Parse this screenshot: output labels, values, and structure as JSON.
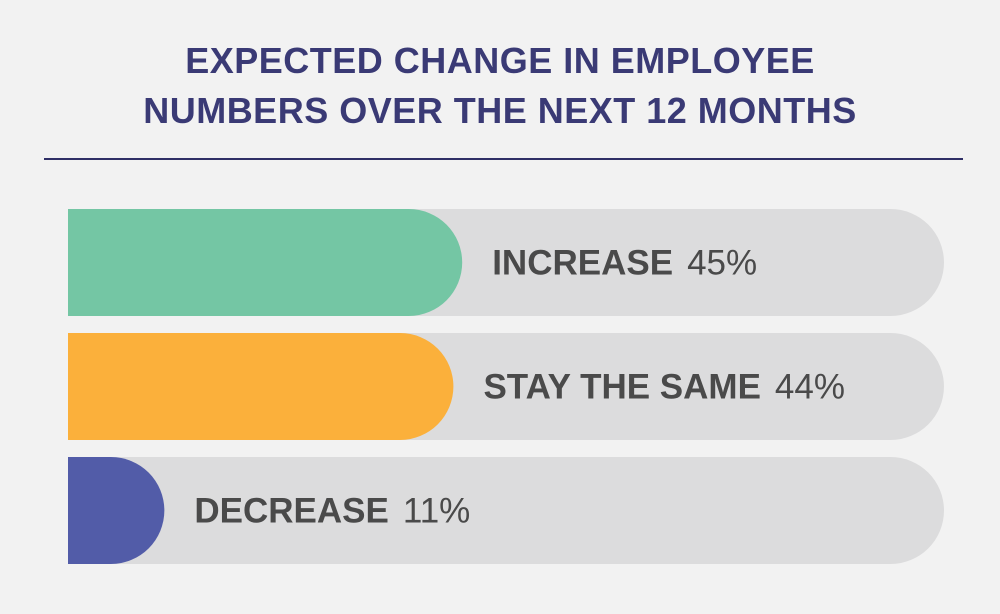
{
  "title_lines": [
    "EXPECTED CHANGE IN EMPLOYEE",
    "NUMBERS OVER THE NEXT 12 MONTHS"
  ],
  "colors": {
    "title": "#3a3a75",
    "rule": "#2f2f66",
    "track": "#dcdcdd",
    "background": "#f2f2f2",
    "label": "#4a4a4a"
  },
  "chart_data": {
    "type": "bar",
    "orientation": "horizontal",
    "title": "EXPECTED CHANGE IN EMPLOYEE NUMBERS OVER THE NEXT 12 MONTHS",
    "categories": [
      "INCREASE",
      "STAY THE SAME",
      "DECREASE"
    ],
    "values": [
      45,
      44,
      11
    ],
    "value_labels": [
      "45%",
      "44%",
      "11%"
    ],
    "unit": "%",
    "xlim": [
      0,
      100
    ],
    "bar_colors": [
      "#74c6a4",
      "#fbb03b",
      "#525ca8"
    ],
    "grid": false,
    "legend": "none"
  }
}
